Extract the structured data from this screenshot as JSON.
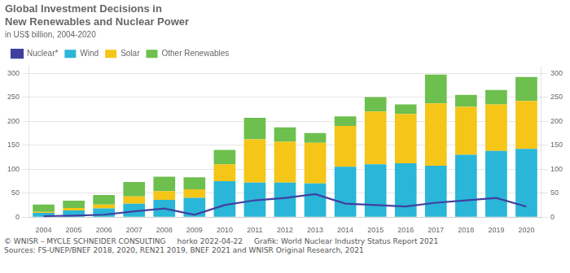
{
  "chart_data": {
    "type": "bar",
    "title": [
      "Global Investment Decisions in",
      "New Renewables and Nuclear Power"
    ],
    "subtitle": "in US$ billion, 2004-2020",
    "categories": [
      "2004",
      "2005",
      "2006",
      "2007",
      "2008",
      "2009",
      "2010",
      "2011",
      "2012",
      "2013",
      "2014",
      "2015",
      "2016",
      "2017",
      "2018",
      "2019",
      "2020"
    ],
    "series": [
      {
        "name": "Wind",
        "color": "#29b6d8",
        "values": [
          9,
          14,
          18,
          28,
          36,
          40,
          75,
          72,
          72,
          70,
          105,
          110,
          112,
          107,
          130,
          138,
          142
        ]
      },
      {
        "name": "Solar",
        "color": "#f5c518",
        "values": [
          2,
          5,
          8,
          15,
          18,
          18,
          35,
          90,
          85,
          85,
          85,
          110,
          103,
          130,
          100,
          97,
          100
        ]
      },
      {
        "name": "Other Renewables",
        "color": "#6dbf4e",
        "values": [
          15,
          15,
          20,
          30,
          30,
          25,
          30,
          45,
          30,
          20,
          20,
          30,
          20,
          60,
          25,
          30,
          50
        ]
      },
      {
        "name": "Nuclear*",
        "color": "#4040a0",
        "type": "line",
        "axis": "y2",
        "values": [
          2,
          3,
          5,
          12,
          18,
          5,
          25,
          35,
          40,
          48,
          28,
          25,
          22,
          30,
          35,
          40,
          22
        ]
      }
    ],
    "stacked": true,
    "ylim": [
      0,
      315
    ],
    "yticks": [
      0,
      50,
      100,
      150,
      200,
      250,
      300
    ],
    "y2lim": [
      0,
      315
    ],
    "y2ticks": [
      0,
      50,
      100,
      150,
      200,
      250,
      300
    ],
    "grid": true,
    "legend": "upper left",
    "annotations": [
      "© WNISR – MYCLE SCHNEIDER CONSULTING",
      "horko 2022-04-22",
      "Grafik: World Nuclear Industry Status Report 2021",
      "Sources: FS-UNEP/BNEF 2018, 2020, REN21 2019, BNEF 2021 and WNISR Original Research, 2021"
    ]
  }
}
